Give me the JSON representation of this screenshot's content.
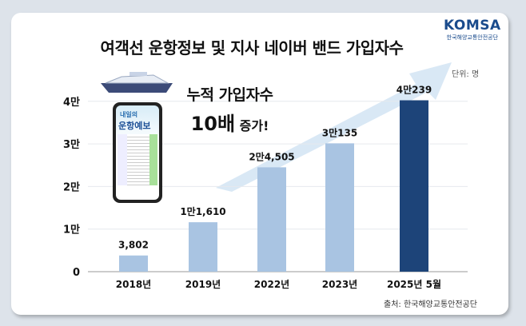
{
  "chart_data": {
    "type": "bar",
    "title": "여객선 운항정보 및 지사 네이버 밴드 가입자수",
    "unit_label": "단위: 명",
    "categories": [
      "2018년",
      "2019년",
      "2022년",
      "2023년",
      "2025년 5월"
    ],
    "values": [
      3802,
      11610,
      24505,
      30135,
      40239
    ],
    "data_labels": [
      "3,802",
      "1만1,610",
      "2만4,505",
      "3만135",
      "4만239"
    ],
    "yticks": [
      0,
      10000,
      20000,
      30000,
      40000
    ],
    "ytick_labels": [
      "0",
      "1만",
      "2만",
      "3만",
      "4만"
    ],
    "ylim": [
      0,
      43000
    ],
    "grid": true,
    "colors": {
      "bar": "#a9c4e2",
      "highlight": "#1d4479",
      "arrow": "#cfe2f3"
    }
  },
  "callout": {
    "line1": "누적 가입자수",
    "line2_big": "10배",
    "line2_small": " 증가!"
  },
  "phone": {
    "line1": "내일의",
    "line2": "운항예보"
  },
  "logo": {
    "name": "KOMSA",
    "subtitle": "한국해양교통안전공단"
  },
  "source": "출처: 한국해양교통안전공단"
}
